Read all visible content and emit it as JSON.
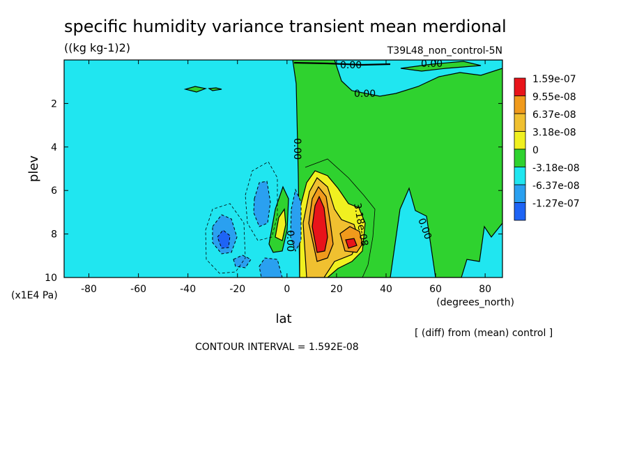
{
  "chart_data": {
    "type": "heatmap",
    "title": "specific humidity variance transient mean merdional",
    "units": "((kg kg-1)2)",
    "run_label": "T39L48_non_control-5N",
    "xlabel": "lat",
    "x_units": "(degrees_north)",
    "ylabel": "plev",
    "y_units": "(x1E4 Pa)",
    "xlim": [
      -90,
      87
    ],
    "ylim": [
      10,
      0
    ],
    "x_ticks": [
      -80,
      -60,
      -40,
      -20,
      0,
      20,
      40,
      60,
      80
    ],
    "y_ticks": [
      2,
      4,
      6,
      8,
      10
    ],
    "x_tick_labels": [
      "-80",
      "-60",
      "-40",
      "-20",
      "0",
      "20",
      "40",
      "60",
      "80"
    ],
    "y_tick_labels": [
      "2",
      "4",
      "6",
      "8",
      "10"
    ],
    "contour_interval_text": "CONTOUR INTERVAL = 1.592E-08",
    "diff_note": "[ (diff) from (mean) control ]",
    "contour_labels": [
      "0.00",
      "0.00",
      "0.00",
      "0.00",
      "0.00",
      "3.18e-08",
      "0.00"
    ],
    "legend": {
      "placement": "right",
      "levels": [
        {
          "label": "1.59e-07",
          "color": "#e8141a"
        },
        {
          "label": "9.55e-08",
          "color": "#f09a1c"
        },
        {
          "label": "6.37e-08",
          "color": "#f0c030"
        },
        {
          "label": "3.18e-08",
          "color": "#f0f020"
        },
        {
          "label": "0",
          "color": "#2fd22f"
        },
        {
          "label": "-3.18e-08",
          "color": "#20e6f0"
        },
        {
          "label": "-6.37e-08",
          "color": "#2aa0f0"
        },
        {
          "label": "-1.27e-07",
          "color": "#1e64f5"
        }
      ]
    }
  }
}
